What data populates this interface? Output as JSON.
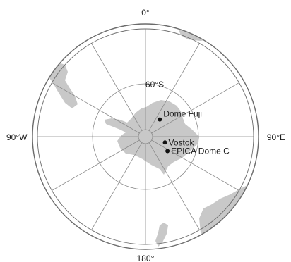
{
  "map": {
    "longitude_labels": {
      "top": "0°",
      "left": "90°W",
      "right": "90°E",
      "bottom": "180°"
    },
    "latitude_label": "60°S",
    "sites": [
      {
        "name": "Dome Fuji",
        "lat": -77.3,
        "lon": 39.7
      },
      {
        "name": "Vostok",
        "lat": -78.5,
        "lon": 106.8
      },
      {
        "name": "EPICA Dome C",
        "lat": -75.1,
        "lon": 123.4
      }
    ],
    "colors": {
      "land": "#c8c8c8",
      "graticule": "#8a8a8a",
      "frame": "#6b6b6b",
      "site_marker": "#111111"
    }
  }
}
